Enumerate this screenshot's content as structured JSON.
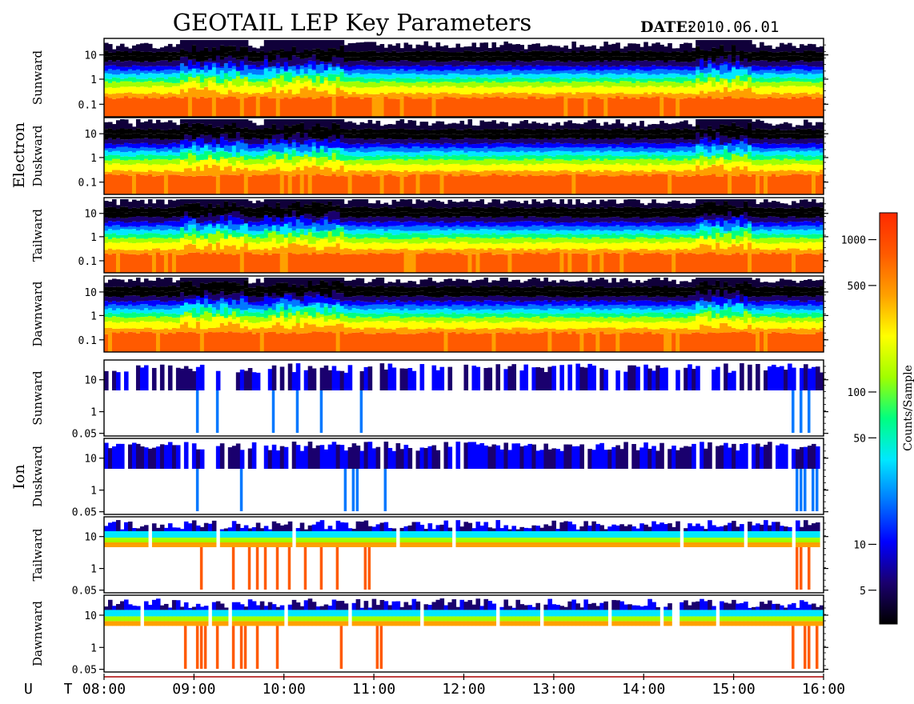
{
  "header": {
    "title": "GEOTAIL LEP Key Parameters",
    "date_label": "DATE:",
    "date_value": "2010.06.01"
  },
  "groups": {
    "electron": "Electron",
    "ion": "Ion"
  },
  "colorbar": {
    "label": "Counts/Sample",
    "scale": "log",
    "range": [
      3,
      1500
    ],
    "ticks": [
      {
        "value": 1000,
        "label": "1000"
      },
      {
        "value": 500,
        "label": "500"
      },
      {
        "value": 100,
        "label": "100"
      },
      {
        "value": 50,
        "label": "50"
      },
      {
        "value": 10,
        "label": "10"
      },
      {
        "value": 5,
        "label": "5"
      }
    ],
    "colors": [
      "#000000",
      "#1a006e",
      "#0000ff",
      "#0078ff",
      "#00e8ff",
      "#00ff80",
      "#a0ff00",
      "#ffff00",
      "#ffa000",
      "#ff5a00",
      "#ff2a00"
    ]
  },
  "chart_data": {
    "type": "heatmap",
    "x": {
      "label": "U T",
      "range": [
        "08:00",
        "16:00"
      ],
      "ticks": [
        "08:00",
        "09:00",
        "10:00",
        "11:00",
        "12:00",
        "13:00",
        "14:00",
        "15:00",
        "16:00"
      ]
    },
    "panels": [
      {
        "species": "electron",
        "label": "Sunward",
        "scale": "log",
        "yticks": [
          "10",
          "1",
          "0.1"
        ]
      },
      {
        "species": "electron",
        "label": "Duskward",
        "scale": "log",
        "yticks": [
          "10",
          "1",
          "0.1"
        ]
      },
      {
        "species": "electron",
        "label": "Tailward",
        "scale": "log",
        "yticks": [
          "10",
          "1",
          "0.1"
        ]
      },
      {
        "species": "electron",
        "label": "Dawnward",
        "scale": "log",
        "yticks": [
          "10",
          "1",
          "0.1"
        ]
      },
      {
        "species": "ion",
        "label": "Sunward",
        "scale": "log",
        "yticks": [
          "10",
          "1",
          "0.05"
        ]
      },
      {
        "species": "ion",
        "label": "Duskward",
        "scale": "log",
        "yticks": [
          "10",
          "1",
          "0.05"
        ]
      },
      {
        "species": "ion",
        "label": "Tailward",
        "scale": "log",
        "yticks": [
          "10",
          "1",
          "0.05"
        ]
      },
      {
        "species": "ion",
        "label": "Dawnward",
        "scale": "log",
        "yticks": [
          "10",
          "1",
          "0.05"
        ]
      }
    ],
    "notes": "Electron panels: a stable red band (~1000 counts/sample) at the lowest energies, fading through yellow-green-blue to black near 1, with enhanced high-energy activity around 09:00 and 09:45-10:15. Ion panels: counts concentrated above ~4 with data gaps; frequent narrow vertical spikes, especially 09:00-11:00 and 15:45-16:00."
  }
}
